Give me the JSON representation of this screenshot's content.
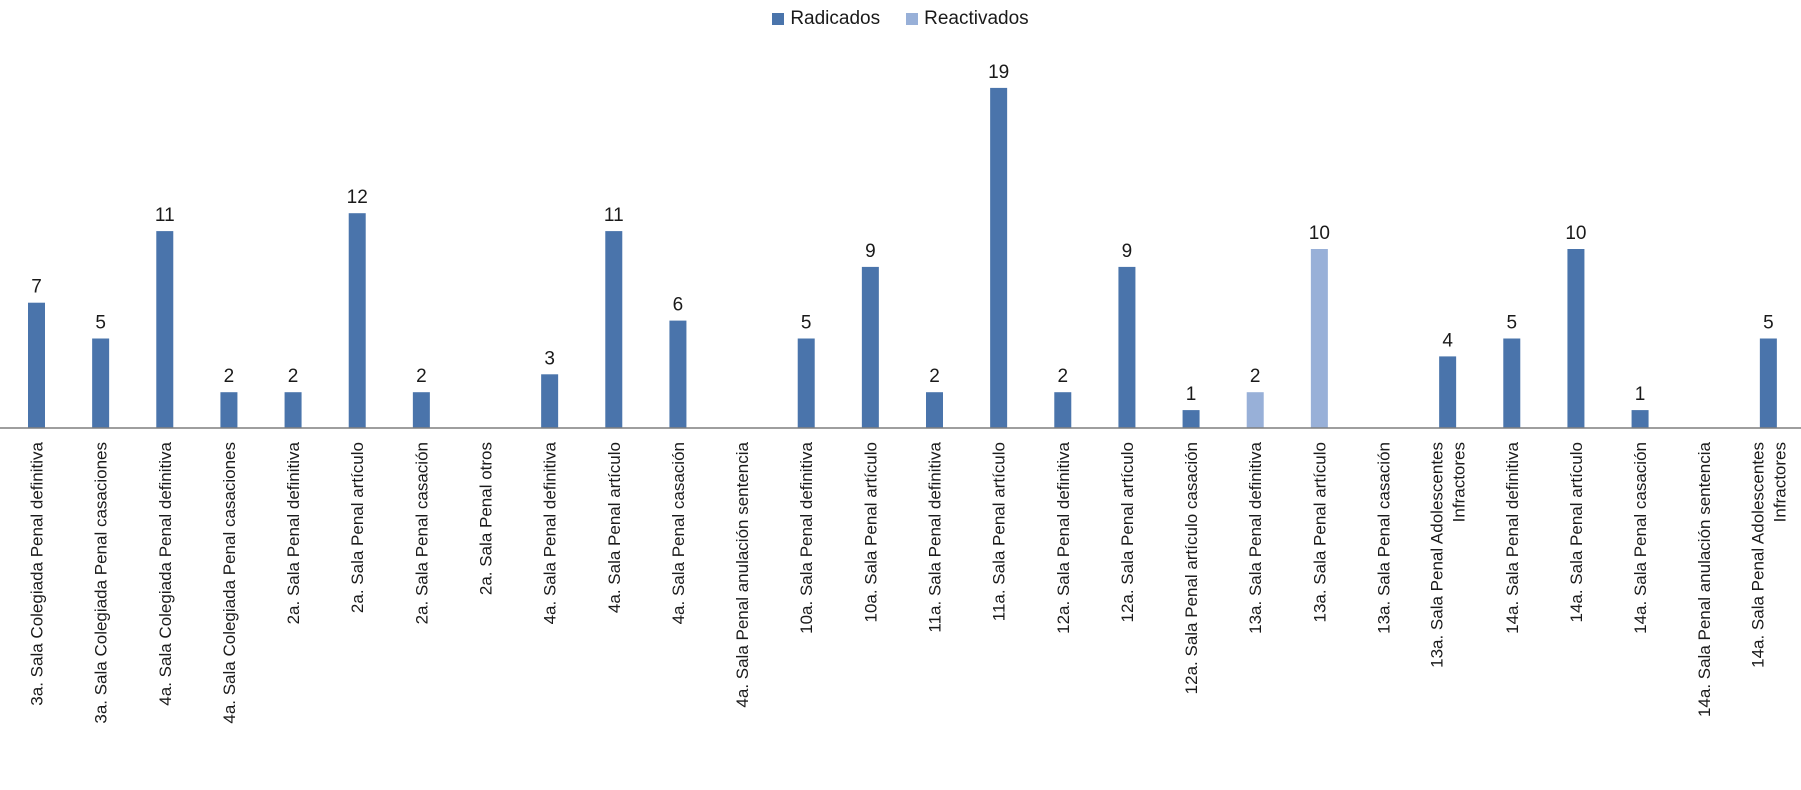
{
  "chart_data": {
    "type": "bar",
    "categories": [
      "3a. Sala Colegiada Penal definitiva",
      "3a. Sala Colegiada Penal casaciones",
      "4a. Sala Colegiada Penal definitiva",
      "4a. Sala Colegiada Penal casaciones",
      "2a. Sala Penal definitiva",
      "2a. Sala Penal artículo",
      "2a. Sala Penal casación",
      "2a. Sala Penal otros",
      "4a. Sala Penal definitiva",
      "4a. Sala Penal artículo",
      "4a. Sala Penal casación",
      "4a. Sala Penal anulación sentencia",
      "10a. Sala Penal definitiva",
      "10a. Sala Penal artículo",
      "11a. Sala Penal definitiva",
      "11a. Sala Penal artículo",
      "12a. Sala Penal definitiva",
      "12a. Sala Penal artículo",
      "12a. Sala Penal artículo casación",
      "13a. Sala Penal definitiva",
      "13a. Sala Penal artículo",
      "13a. Sala Penal casación",
      "13a. Sala Penal Adolescentes Infractores",
      "14a. Sala Penal definitiva",
      "14a. Sala Penal artículo",
      "14a. Sala Penal casación",
      "14a. Sala Penal anulación sentencia",
      "14a. Sala Penal Adolescentes Infractores"
    ],
    "series": [
      {
        "name": "Radicados",
        "color": "#4a74ab",
        "values": [
          7,
          5,
          11,
          2,
          2,
          12,
          2,
          null,
          3,
          11,
          6,
          null,
          5,
          9,
          2,
          19,
          2,
          9,
          1,
          null,
          null,
          null,
          4,
          5,
          10,
          1,
          null,
          5
        ]
      },
      {
        "name": "Reactivados",
        "color": "#98b0d8",
        "values": [
          null,
          null,
          null,
          null,
          null,
          null,
          null,
          null,
          null,
          null,
          null,
          null,
          null,
          null,
          null,
          null,
          null,
          null,
          null,
          2,
          10,
          null,
          null,
          null,
          null,
          null,
          null,
          null
        ]
      }
    ],
    "ylim": [
      0,
      20
    ],
    "grid": false,
    "legend_position": "top-center",
    "data_labels": true
  }
}
